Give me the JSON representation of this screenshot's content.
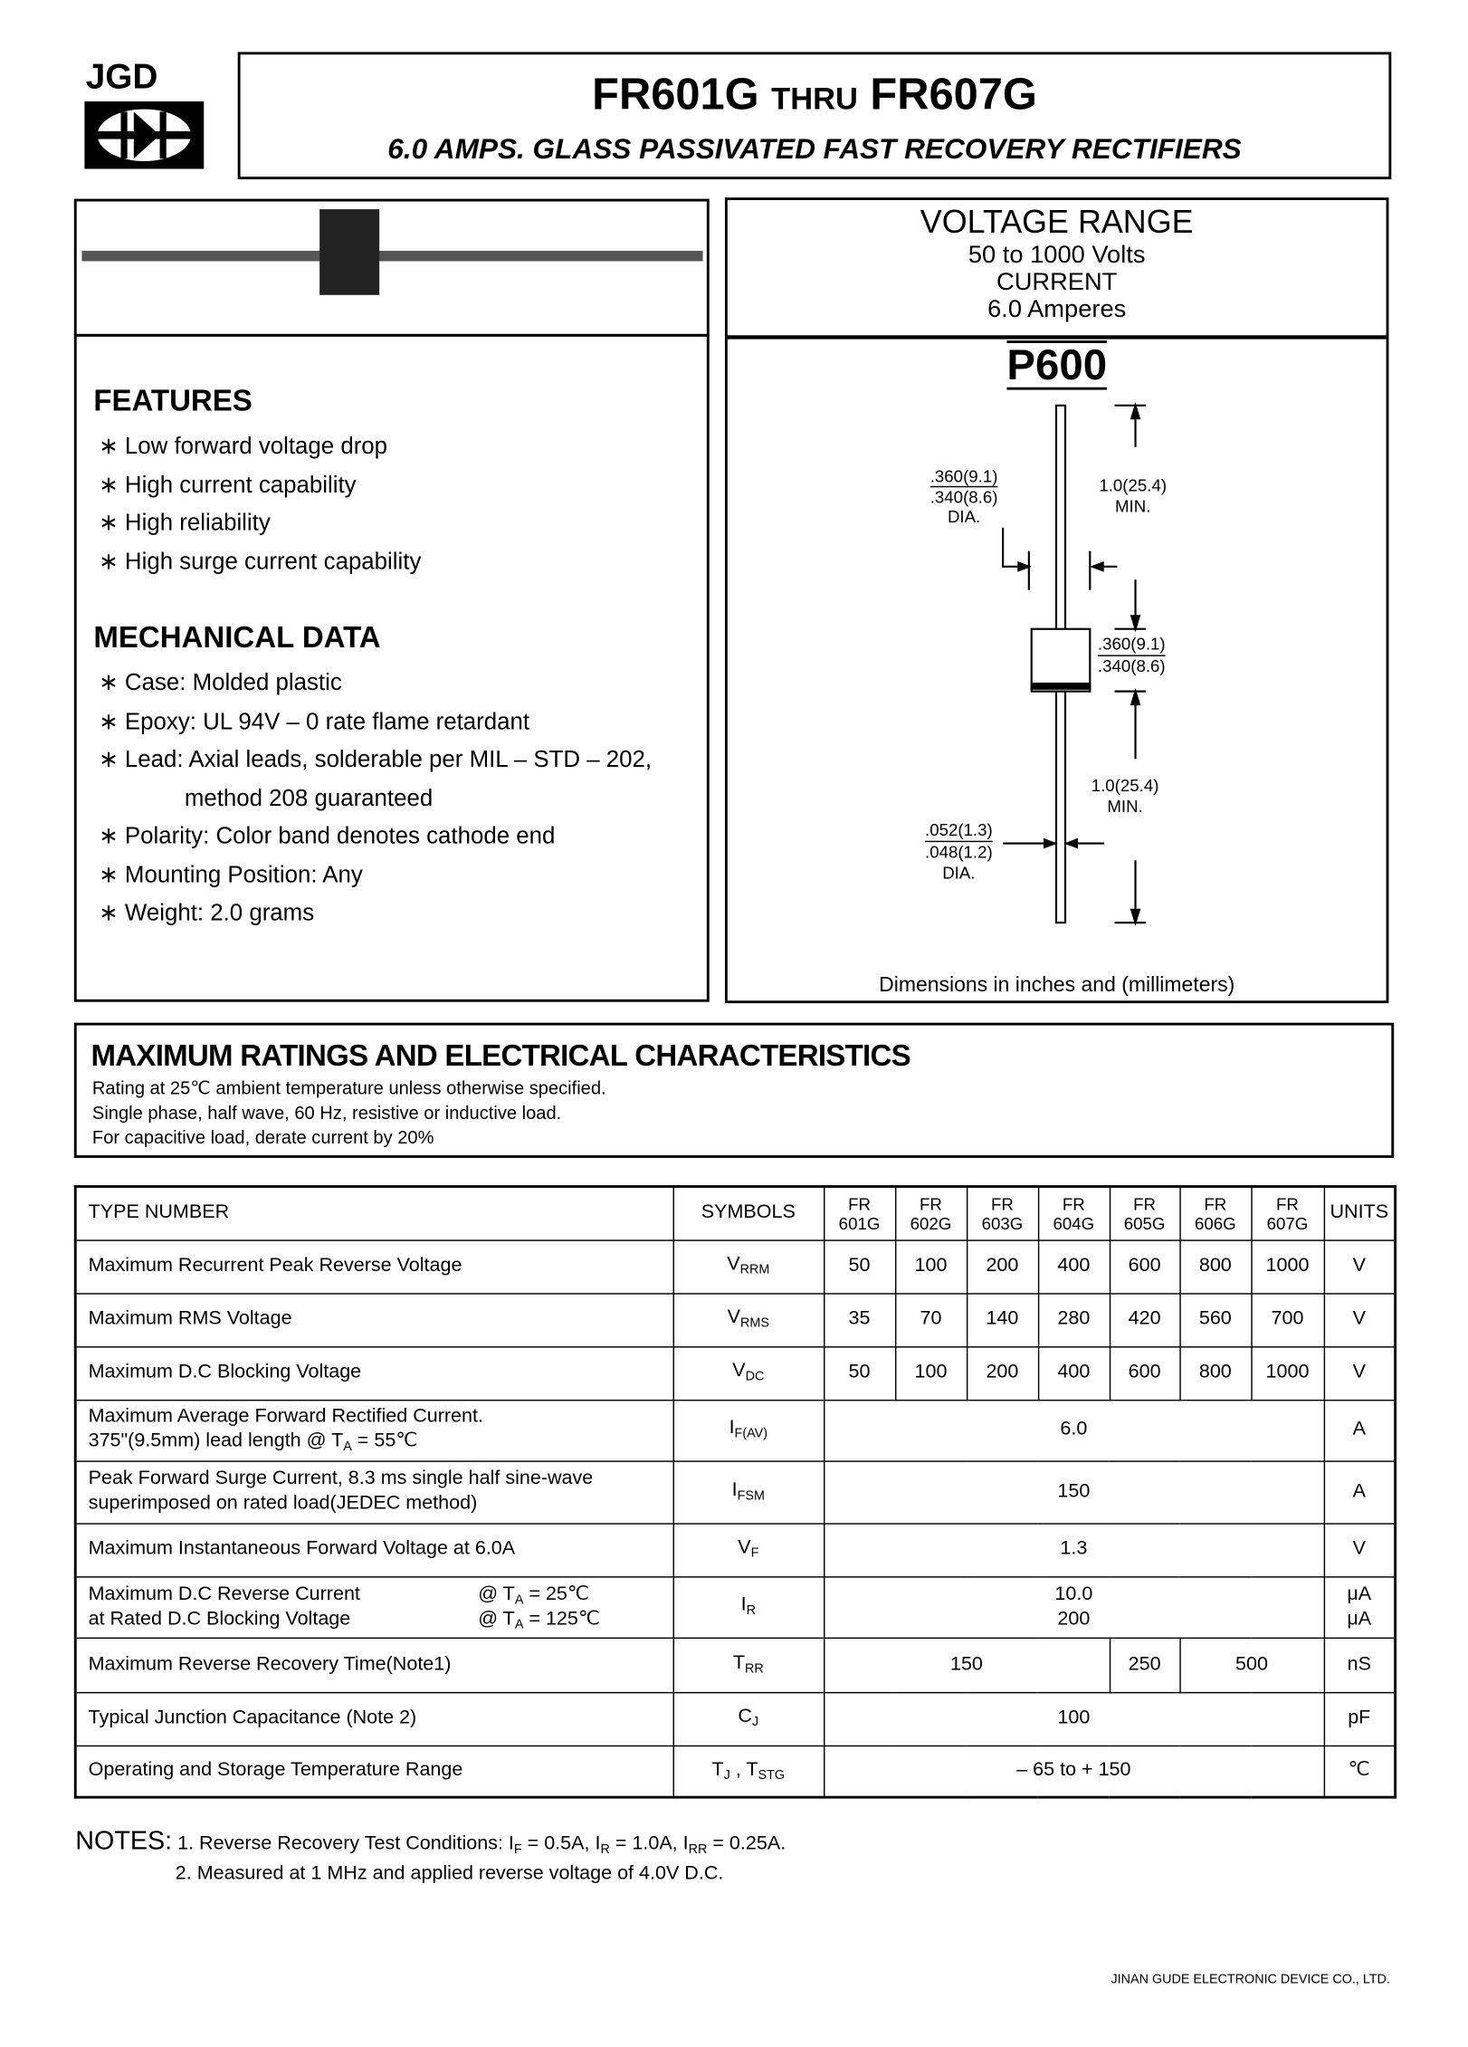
{
  "logo": {
    "text": "JGD"
  },
  "header": {
    "part_from": "FR601G",
    "thru": "THRU",
    "part_to": "FR607G",
    "subtitle": "6.0 AMPS. GLASS PASSIVATED FAST RECOVERY RECTIFIERS"
  },
  "ranges": {
    "voltage_title": "VOLTAGE RANGE",
    "voltage_value": "50 to 1000 Volts",
    "current_title": "CURRENT",
    "current_value": "6.0 Amperes"
  },
  "package": {
    "name": "P600",
    "dim_body_dia_max": ".360(9.1)",
    "dim_body_dia_min": ".340(8.6)",
    "dia_label": "DIA.",
    "dim_lead_len_top": "1.0(25.4)",
    "min_label": "MIN.",
    "dim_body_len_max": ".360(9.1)",
    "dim_body_len_min": ".340(8.6)",
    "dim_lead_len_bottom": "1.0(25.4)",
    "dim_lead_dia_max": ".052(1.3)",
    "dim_lead_dia_min": ".048(1.2)",
    "caption": "Dimensions in inches and (millimeters)"
  },
  "features": {
    "title": "FEATURES",
    "items": [
      "Low forward voltage drop",
      "High current capability",
      "High reliability",
      "High surge current capability"
    ]
  },
  "mechanical": {
    "title": "MECHANICAL DATA",
    "items": [
      "Case: Molded plastic",
      "Epoxy: UL 94V – 0 rate flame retardant",
      "Lead: Axial leads, solderable per MIL – STD – 202,",
      "Polarity: Color band denotes cathode end",
      "Mounting Position: Any",
      "Weight: 2.0 grams"
    ],
    "lead_continuation": "method 208 guaranteed"
  },
  "ratings": {
    "title": "MAXIMUM RATINGS AND ELECTRICAL CHARACTERISTICS",
    "lines": [
      "Rating at 25℃ ambient temperature unless otherwise specified.",
      "Single phase, half wave, 60 Hz, resistive or inductive load.",
      "For capacitive load, derate current by 20%"
    ]
  },
  "table": {
    "header": {
      "type_number": "TYPE NUMBER",
      "symbols": "SYMBOLS",
      "parts": [
        [
          "FR",
          "601G"
        ],
        [
          "FR",
          "602G"
        ],
        [
          "FR",
          "603G"
        ],
        [
          "FR",
          "604G"
        ],
        [
          "FR",
          "605G"
        ],
        [
          "FR",
          "606G"
        ],
        [
          "FR",
          "607G"
        ]
      ],
      "units": "UNITS"
    },
    "rows": [
      {
        "param": [
          [
            {
              "t": "Maximum Recurrent Peak Reverse Voltage"
            }
          ]
        ],
        "symbol": [
          {
            "t": "V"
          },
          {
            "s": "RRM"
          }
        ],
        "values": [
          "50",
          "100",
          "200",
          "400",
          "600",
          "800",
          "1000"
        ],
        "unit": [
          "V"
        ]
      },
      {
        "param": [
          [
            {
              "t": "Maximum RMS Voltage"
            }
          ]
        ],
        "symbol": [
          {
            "t": "V"
          },
          {
            "s": "RMS"
          }
        ],
        "values": [
          "35",
          "70",
          "140",
          "280",
          "420",
          "560",
          "700"
        ],
        "unit": [
          "V"
        ]
      },
      {
        "param": [
          [
            {
              "t": "Maximum D.C Blocking Voltage"
            }
          ]
        ],
        "symbol": [
          {
            "t": "V"
          },
          {
            "s": "DC"
          }
        ],
        "values": [
          "50",
          "100",
          "200",
          "400",
          "600",
          "800",
          "1000"
        ],
        "unit": [
          "V"
        ]
      },
      {
        "param": [
          [
            {
              "t": "Maximum Average Forward Rectified Current."
            }
          ],
          [
            {
              "t": "375\"(9.5mm) lead length @ T"
            },
            {
              "s": "A"
            },
            {
              "t": " = 55℃"
            }
          ]
        ],
        "symbol": [
          {
            "t": "I"
          },
          {
            "s": "F(AV)"
          }
        ],
        "spans": [
          {
            "v": [
              "6.0"
            ],
            "n": 7
          }
        ],
        "unit": [
          "A"
        ]
      },
      {
        "param": [
          [
            {
              "t": "Peak Forward Surge Current, 8.3 ms single half sine-wave"
            }
          ],
          [
            {
              "t": "superimposed on rated load(JEDEC method)"
            }
          ]
        ],
        "symbol": [
          {
            "t": "I"
          },
          {
            "s": "FSM"
          }
        ],
        "spans": [
          {
            "v": [
              "150"
            ],
            "n": 7
          }
        ],
        "unit": [
          "A"
        ]
      },
      {
        "param": [
          [
            {
              "t": "Maximum Instantaneous Forward Voltage at 6.0A"
            }
          ]
        ],
        "symbol": [
          {
            "t": "V"
          },
          {
            "s": "F"
          }
        ],
        "spans": [
          {
            "v": [
              "1.3"
            ],
            "n": 7
          }
        ],
        "unit": [
          "V"
        ]
      },
      {
        "param": [
          [
            {
              "t": "Maximum D.C Reverse Current"
            },
            {
              "c": [
                {
                  "t": "@ T"
                },
                {
                  "s": "A"
                },
                {
                  "t": " = 25℃"
                }
              ]
            }
          ],
          [
            {
              "t": "at Rated D.C Blocking Voltage"
            },
            {
              "c": [
                {
                  "t": "@ T"
                },
                {
                  "s": "A"
                },
                {
                  "t": " = 125℃"
                }
              ]
            }
          ]
        ],
        "symbol": [
          {
            "t": "I"
          },
          {
            "s": "R"
          }
        ],
        "spans": [
          {
            "v": [
              "10.0",
              "200"
            ],
            "n": 7
          }
        ],
        "unit": [
          "μA",
          "μA"
        ]
      },
      {
        "param": [
          [
            {
              "t": "Maximum Reverse Recovery Time(Note1)"
            }
          ]
        ],
        "symbol": [
          {
            "t": "T"
          },
          {
            "s": "RR"
          }
        ],
        "spans": [
          {
            "v": [
              "150"
            ],
            "n": 4
          },
          {
            "v": [
              "250"
            ],
            "n": 1
          },
          {
            "v": [
              "500"
            ],
            "n": 2
          }
        ],
        "unit": [
          "nS"
        ]
      },
      {
        "param": [
          [
            {
              "t": "Typical Junction Capacitance (Note 2)"
            }
          ]
        ],
        "symbol": [
          {
            "t": "C"
          },
          {
            "s": "J"
          }
        ],
        "spans": [
          {
            "v": [
              "100"
            ],
            "n": 7
          }
        ],
        "unit": [
          "pF"
        ]
      },
      {
        "param": [
          [
            {
              "t": "Operating and Storage Temperature Range"
            }
          ]
        ],
        "symbol": [
          {
            "t": "T"
          },
          {
            "s": "J"
          },
          {
            "t": " , T"
          },
          {
            "s": "STG"
          }
        ],
        "spans": [
          {
            "v": [
              "– 65 to + 150"
            ],
            "n": 7
          }
        ],
        "unit": [
          "℃"
        ]
      }
    ]
  },
  "notes": {
    "label": "NOTES:",
    "items": [
      [
        {
          "t": "1. Reverse Recovery Test Conditions: I"
        },
        {
          "s": "F"
        },
        {
          "t": " = 0.5A, I"
        },
        {
          "s": "R"
        },
        {
          "t": " = 1.0A, I"
        },
        {
          "s": "RR"
        },
        {
          "t": " = 0.25A."
        }
      ],
      [
        {
          "t": "2. Measured at 1 MHz and applied reverse voltage of 4.0V D.C."
        }
      ]
    ]
  },
  "footer": {
    "company": "JINAN GUDE ELECTRONIC DEVICE CO., LTD."
  }
}
